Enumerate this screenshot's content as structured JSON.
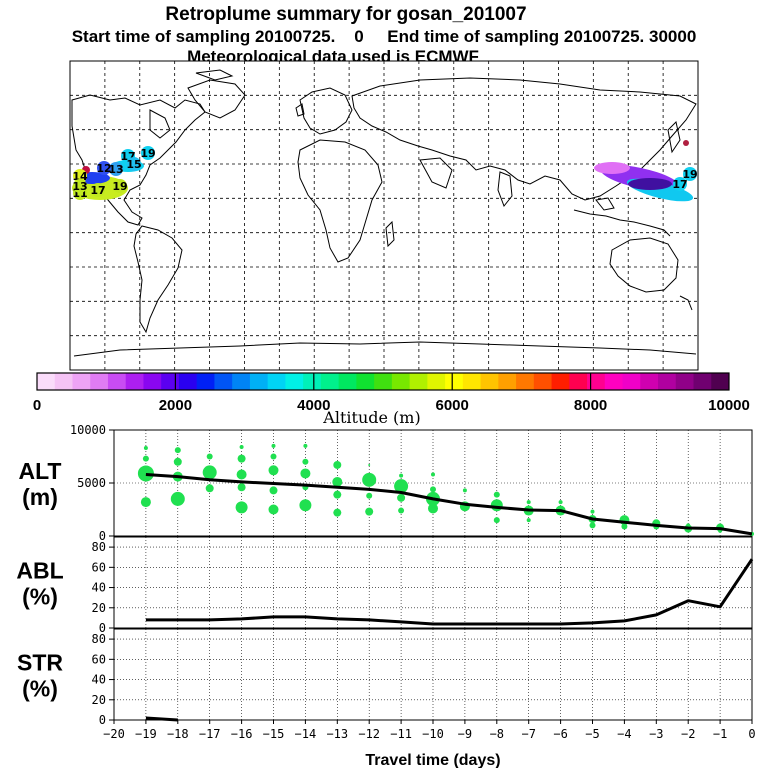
{
  "header": {
    "title": "Retroplume summary for gosan_201007",
    "sampling": "Start time of sampling 20100725.    0     End time of sampling 20100725. 30000",
    "met": "Meteorological data used is ECMWF"
  },
  "colorbar": {
    "colors": [
      "#fadcfa",
      "#f5c3f5",
      "#eea3f5",
      "#e07cf3",
      "#c94cf3",
      "#ad1ff0",
      "#8a06f0",
      "#5b00f0",
      "#2a00f0",
      "#0020f5",
      "#0055f5",
      "#0084f5",
      "#00b0f5",
      "#00d4f5",
      "#00f0e6",
      "#00f0b8",
      "#00f08c",
      "#00e860",
      "#10e230",
      "#40e010",
      "#78e800",
      "#b0f000",
      "#e0f500",
      "#ffff00",
      "#ffe600",
      "#ffc400",
      "#ffa000",
      "#ff7800",
      "#ff5000",
      "#ff1e00",
      "#ff0050",
      "#ff0090",
      "#ff00c0",
      "#f000c8",
      "#d000b0",
      "#b000a0",
      "#900088",
      "#700070",
      "#500050"
    ],
    "tick_labels": [
      "0",
      "2000",
      "4000",
      "6000",
      "8000",
      "10000"
    ],
    "label": "Altitude (m)"
  },
  "map_markers": [
    {
      "label": "17",
      "color": "#10d0f0"
    },
    {
      "label": "19",
      "color": "#10d0f0"
    },
    {
      "label": "15",
      "color": "#20c0f0"
    },
    {
      "label": "13",
      "color": "#30a0f0"
    },
    {
      "label": "12",
      "color": "#3050f0"
    },
    {
      "label": "14",
      "color": "#e0f020"
    },
    {
      "label": "11",
      "color": "#c0e820"
    },
    {
      "label": "17",
      "color": "#c0e820"
    },
    {
      "label": "19",
      "color": "#c0e820"
    },
    {
      "label": "13",
      "color": "#c0e820"
    },
    {
      "label": "19",
      "color": "#10d0f0"
    },
    {
      "label": "17",
      "color": "#10d0f0"
    }
  ],
  "chart_data": [
    {
      "type": "line",
      "panel": "ALT",
      "ylabel": "ALT\n(m)",
      "ylabel_lines": [
        "ALT",
        "(m)"
      ],
      "ylim": [
        0,
        10000
      ],
      "yticks": [
        0,
        5000,
        10000
      ],
      "xlim": [
        -20,
        0
      ],
      "x": [
        -19,
        -18,
        -17,
        -16,
        -15,
        -14,
        -13,
        -12,
        -11,
        -10,
        -9,
        -8,
        -7,
        -6,
        -5,
        -4,
        -3,
        -2,
        -1,
        0
      ],
      "series": [
        {
          "name": "mean altitude",
          "color": "#000000",
          "values": [
            5800,
            5600,
            5300,
            5100,
            4950,
            4800,
            4600,
            4400,
            4100,
            3500,
            3000,
            2700,
            2450,
            2400,
            1600,
            1300,
            1000,
            750,
            700,
            200
          ]
        }
      ],
      "scatter": {
        "color": "#20e050",
        "points": [
          [
            -19,
            5900,
            8
          ],
          [
            -19,
            7300,
            3
          ],
          [
            -19,
            8300,
            2
          ],
          [
            -19,
            3200,
            5
          ],
          [
            -18,
            3500,
            7
          ],
          [
            -18,
            5600,
            5
          ],
          [
            -18,
            7000,
            4
          ],
          [
            -18,
            8100,
            3
          ],
          [
            -17,
            6000,
            7
          ],
          [
            -17,
            4500,
            4
          ],
          [
            -17,
            7500,
            3
          ],
          [
            -16,
            2700,
            6
          ],
          [
            -16,
            4600,
            4
          ],
          [
            -16,
            5800,
            5
          ],
          [
            -16,
            7300,
            4
          ],
          [
            -16,
            8400,
            2
          ],
          [
            -15,
            2500,
            5
          ],
          [
            -15,
            4300,
            4
          ],
          [
            -15,
            6200,
            5
          ],
          [
            -15,
            7500,
            3
          ],
          [
            -15,
            8500,
            2
          ],
          [
            -14,
            2900,
            6
          ],
          [
            -14,
            4600,
            3
          ],
          [
            -14,
            5900,
            5
          ],
          [
            -14,
            7000,
            3
          ],
          [
            -14,
            8500,
            2
          ],
          [
            -13,
            2200,
            4
          ],
          [
            -13,
            3900,
            4
          ],
          [
            -13,
            5100,
            5
          ],
          [
            -13,
            6700,
            4
          ],
          [
            -12,
            2300,
            4
          ],
          [
            -12,
            3800,
            3
          ],
          [
            -12,
            5300,
            7
          ],
          [
            -12,
            6700,
            1
          ],
          [
            -11,
            2400,
            3
          ],
          [
            -11,
            3600,
            4
          ],
          [
            -11,
            4700,
            7
          ],
          [
            -11,
            5700,
            2
          ],
          [
            -10,
            2600,
            5
          ],
          [
            -10,
            3500,
            7
          ],
          [
            -10,
            4400,
            3
          ],
          [
            -10,
            5800,
            2
          ],
          [
            -9,
            2800,
            5
          ],
          [
            -9,
            4300,
            2
          ],
          [
            -8,
            1500,
            3
          ],
          [
            -8,
            2900,
            6
          ],
          [
            -8,
            3900,
            3
          ],
          [
            -7,
            1500,
            2
          ],
          [
            -7,
            2400,
            5
          ],
          [
            -7,
            3200,
            2
          ],
          [
            -6,
            2400,
            5
          ],
          [
            -6,
            3200,
            2
          ],
          [
            -5,
            1000,
            3
          ],
          [
            -5,
            1600,
            4
          ],
          [
            -5,
            2300,
            2
          ],
          [
            -4,
            900,
            3
          ],
          [
            -4,
            1500,
            5
          ],
          [
            -3,
            900,
            3
          ],
          [
            -3,
            1200,
            4
          ],
          [
            -2,
            700,
            4
          ],
          [
            -2,
            1000,
            2
          ],
          [
            -1,
            800,
            4
          ],
          [
            -1,
            500,
            2
          ],
          [
            0,
            200,
            2
          ]
        ]
      }
    },
    {
      "type": "line",
      "panel": "ABL",
      "ylabel": "ABL\n(%)",
      "ylabel_lines": [
        "ABL",
        "(%)"
      ],
      "ylim": [
        0,
        90
      ],
      "yticks": [
        0,
        20,
        40,
        60,
        80
      ],
      "xlim": [
        -20,
        0
      ],
      "x": [
        -19,
        -18,
        -17,
        -16,
        -15,
        -14,
        -13,
        -12,
        -11,
        -10,
        -9,
        -8,
        -7,
        -6,
        -5,
        -4,
        -3,
        -2,
        -1,
        0
      ],
      "series": [
        {
          "name": "fraction in ABL",
          "color": "#000000",
          "values": [
            8,
            8,
            8,
            9,
            11,
            11,
            9,
            8,
            6,
            4,
            4,
            4,
            4,
            4,
            5,
            7,
            13,
            27,
            21,
            68
          ]
        }
      ]
    },
    {
      "type": "line",
      "panel": "STR",
      "ylabel": "STR\n(%)",
      "ylabel_lines": [
        "STR",
        "(%)"
      ],
      "ylim": [
        0,
        90
      ],
      "yticks": [
        0,
        20,
        40,
        60,
        80
      ],
      "xlim": [
        -20,
        0
      ],
      "x": [
        -19,
        -18
      ],
      "series": [
        {
          "name": "fraction in stratosphere",
          "color": "#000000",
          "values": [
            2,
            0
          ]
        }
      ],
      "xlabel": "Travel time (days)",
      "xtick_labels": [
        "−20",
        "−19",
        "−18",
        "−17",
        "−16",
        "−15",
        "−14",
        "−13",
        "−12",
        "−11",
        "−10",
        "−9",
        "−8",
        "−7",
        "−6",
        "−5",
        "−4",
        "−3",
        "−2",
        "−1",
        "0"
      ]
    }
  ]
}
